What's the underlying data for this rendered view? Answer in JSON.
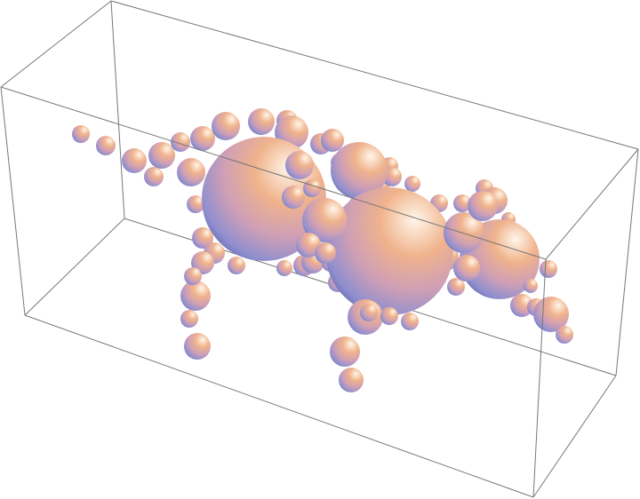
{
  "scene": {
    "kind": "3d-sphere-graphic",
    "background_color": "#ffffff",
    "box_edge_color": "#777777",
    "sphere_palette": {
      "highlight": "#fff6ea",
      "warm": "#f0b38c",
      "mid": "#cf9fb5",
      "cool": "#8f8fcf",
      "shadow": "#5c5fa6"
    }
  }
}
